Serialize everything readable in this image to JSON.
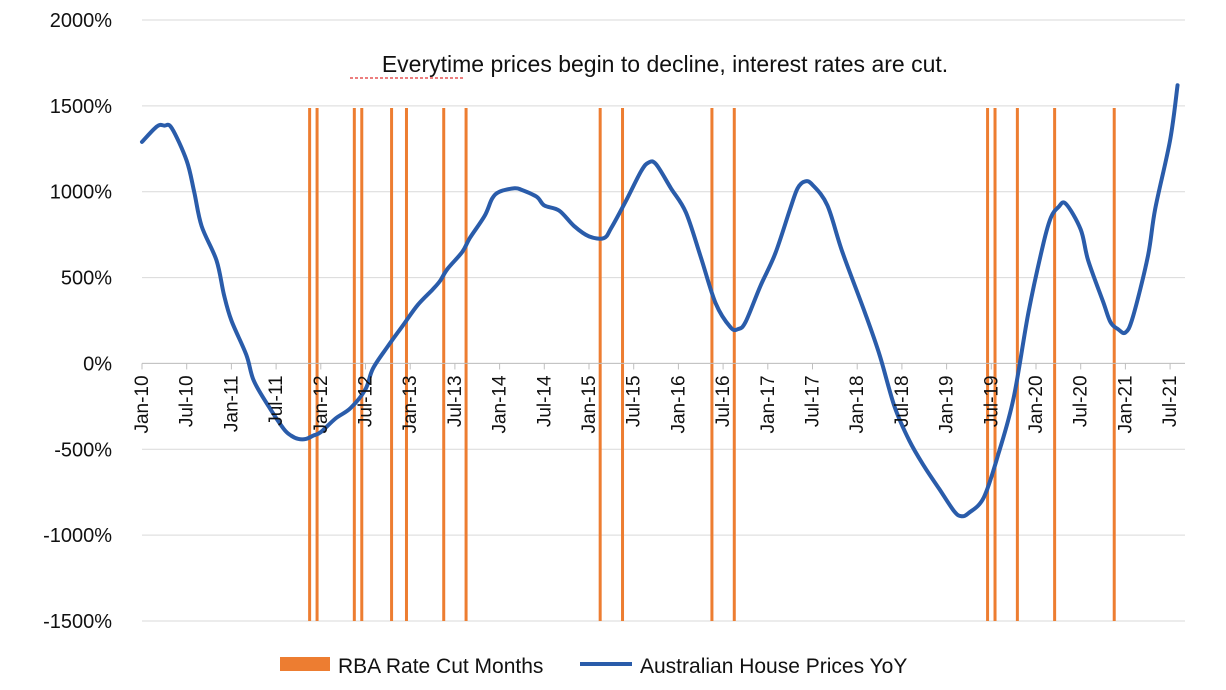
{
  "chart_data": {
    "type": "line",
    "title": "",
    "annotation": "Everytime prices begin to decline, interest rates are cut.",
    "ylim": [
      -1500,
      2000
    ],
    "y_ticks": [
      2000,
      1500,
      1000,
      500,
      0,
      -500,
      -1000,
      -1500
    ],
    "y_tick_labels": [
      "2000%",
      "1500%",
      "1000%",
      "500%",
      "0%",
      "-500%",
      "-1000%",
      "-1500%"
    ],
    "x_tick_labels": [
      "Jan-10",
      "Jul-10",
      "Jan-11",
      "Jul-11",
      "Jan-12",
      "Jul-12",
      "Jan-13",
      "Jul-13",
      "Jan-14",
      "Jul-14",
      "Jan-15",
      "Jul-15",
      "Jan-16",
      "Jul-16",
      "Jan-17",
      "Jul-17",
      "Jan-18",
      "Jul-18",
      "Jan-19",
      "Jul-19",
      "Jan-20",
      "Jul-20",
      "Jan-21",
      "Jul-21"
    ],
    "grid": true,
    "legend_position": "bottom",
    "series": [
      {
        "name": "Australian House Prices YoY",
        "type": "line",
        "color": "#2a5caa",
        "points": [
          [
            "Jan-10",
            1290
          ],
          [
            "Mar-10",
            1380
          ],
          [
            "Apr-10",
            1385
          ],
          [
            "May-10",
            1370
          ],
          [
            "Jul-10",
            1180
          ],
          [
            "Aug-10",
            1000
          ],
          [
            "Sep-10",
            800
          ],
          [
            "Nov-10",
            600
          ],
          [
            "Dec-10",
            400
          ],
          [
            "Jan-11",
            250
          ],
          [
            "Mar-11",
            50
          ],
          [
            "Apr-11",
            -100
          ],
          [
            "Jun-11",
            -250
          ],
          [
            "Aug-11",
            -380
          ],
          [
            "Sep-11",
            -420
          ],
          [
            "Oct-11",
            -440
          ],
          [
            "Nov-11",
            -440
          ],
          [
            "Dec-11",
            -420
          ],
          [
            "Jan-12",
            -400
          ],
          [
            "Mar-12",
            -320
          ],
          [
            "May-12",
            -260
          ],
          [
            "Jul-12",
            -150
          ],
          [
            "Aug-12",
            -30
          ],
          [
            "Oct-12",
            100
          ],
          [
            "Dec-12",
            220
          ],
          [
            "Feb-13",
            340
          ],
          [
            "Apr-13",
            430
          ],
          [
            "May-13",
            480
          ],
          [
            "Jun-13",
            550
          ],
          [
            "Aug-13",
            650
          ],
          [
            "Sep-13",
            730
          ],
          [
            "Nov-13",
            860
          ],
          [
            "Dec-13",
            960
          ],
          [
            "Jan-14",
            1000
          ],
          [
            "Mar-14",
            1020
          ],
          [
            "Apr-14",
            1010
          ],
          [
            "Jun-14",
            970
          ],
          [
            "Jul-14",
            920
          ],
          [
            "Sep-14",
            890
          ],
          [
            "Nov-14",
            800
          ],
          [
            "Jan-15",
            740
          ],
          [
            "Mar-15",
            730
          ],
          [
            "Apr-15",
            790
          ],
          [
            "Jun-15",
            950
          ],
          [
            "Aug-15",
            1120
          ],
          [
            "Sep-15",
            1170
          ],
          [
            "Oct-15",
            1160
          ],
          [
            "Dec-15",
            1020
          ],
          [
            "Feb-16",
            880
          ],
          [
            "Apr-16",
            620
          ],
          [
            "Jun-16",
            350
          ],
          [
            "Aug-16",
            210
          ],
          [
            "Sep-16",
            200
          ],
          [
            "Oct-16",
            240
          ],
          [
            "Dec-16",
            450
          ],
          [
            "Feb-17",
            640
          ],
          [
            "Apr-17",
            900
          ],
          [
            "May-17",
            1020
          ],
          [
            "Jun-17",
            1060
          ],
          [
            "Jul-17",
            1040
          ],
          [
            "Sep-17",
            920
          ],
          [
            "Nov-17",
            650
          ],
          [
            "Feb-18",
            300
          ],
          [
            "Apr-18",
            50
          ],
          [
            "Jun-18",
            -250
          ],
          [
            "Aug-18",
            -450
          ],
          [
            "Oct-18",
            -600
          ],
          [
            "Dec-18",
            -730
          ],
          [
            "Feb-19",
            -860
          ],
          [
            "Mar-19",
            -890
          ],
          [
            "Apr-19",
            -870
          ],
          [
            "Jun-19",
            -780
          ],
          [
            "Aug-19",
            -520
          ],
          [
            "Oct-19",
            -200
          ],
          [
            "Dec-19",
            300
          ],
          [
            "Feb-20",
            700
          ],
          [
            "Mar-20",
            850
          ],
          [
            "Apr-20",
            910
          ],
          [
            "May-20",
            930
          ],
          [
            "Jul-20",
            780
          ],
          [
            "Aug-20",
            600
          ],
          [
            "Oct-20",
            360
          ],
          [
            "Nov-20",
            240
          ],
          [
            "Dec-20",
            200
          ],
          [
            "Jan-21",
            180
          ],
          [
            "Feb-21",
            270
          ],
          [
            "Apr-21",
            620
          ],
          [
            "May-21",
            900
          ],
          [
            "Jul-21",
            1300
          ],
          [
            "Aug-21",
            1620
          ]
        ]
      },
      {
        "name": "RBA Rate Cut Months",
        "type": "bar",
        "color": "#ed7d31",
        "months": [
          "Nov-11",
          "Dec-11",
          "May-12",
          "Jun-12",
          "Oct-12",
          "Dec-12",
          "May-13",
          "Aug-13",
          "Feb-15",
          "May-15",
          "May-16",
          "Aug-16",
          "Jun-19",
          "Jul-19",
          "Oct-19",
          "Mar-20",
          "Nov-20"
        ]
      }
    ]
  }
}
